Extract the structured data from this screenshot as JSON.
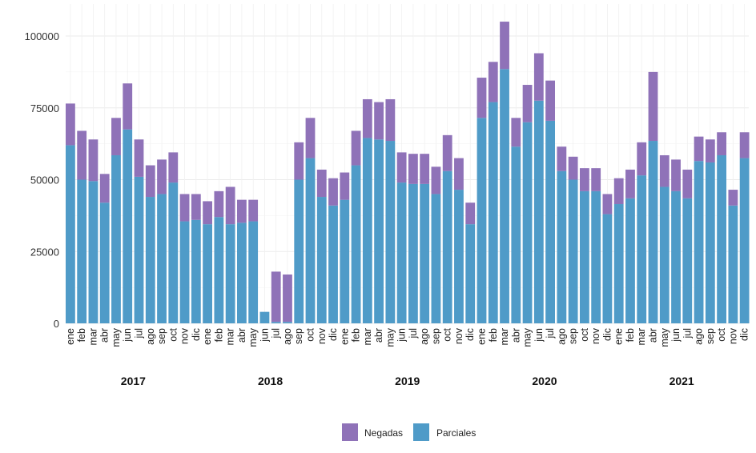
{
  "chart_data": {
    "type": "bar",
    "stacked": true,
    "title": "",
    "xlabel": "",
    "ylabel": "",
    "ylim": [
      0,
      110000
    ],
    "y_ticks": [
      0,
      25000,
      50000,
      75000,
      100000
    ],
    "grid": true,
    "legend_position": "bottom",
    "years": [
      "2017",
      "2018",
      "2019",
      "2020",
      "2021"
    ],
    "month_labels": [
      "ene",
      "feb",
      "mar",
      "abr",
      "may",
      "jun",
      "jul",
      "ago",
      "sep",
      "oct",
      "nov",
      "dic"
    ],
    "series": [
      {
        "name": "Parciales",
        "color": "#4f9bc8",
        "values": [
          [
            62000,
            50000,
            49500,
            42000,
            58500,
            67500,
            51000,
            44000,
            45000,
            49000,
            35500,
            36000
          ],
          [
            34500,
            37000,
            34500,
            35000,
            35500,
            4000,
            500,
            500,
            50000,
            57500,
            44000,
            41000
          ],
          [
            43000,
            55000,
            64500,
            64000,
            63500,
            49000,
            48500,
            48500,
            45000,
            53000,
            46500,
            34500
          ],
          [
            71500,
            77000,
            88500,
            61500,
            70000,
            77500,
            70500,
            53000,
            50000,
            46000,
            46000,
            38000
          ],
          [
            41500,
            43500,
            51500,
            63500,
            47500,
            46000,
            43500,
            56500,
            56000,
            58500,
            41000,
            57500
          ]
        ]
      },
      {
        "name": "Negadas",
        "color": "#8f72b8",
        "values": [
          [
            14500,
            17000,
            14500,
            10000,
            13000,
            16000,
            13000,
            11000,
            12000,
            10500,
            9500,
            9000
          ],
          [
            8000,
            9000,
            13000,
            8000,
            7500,
            0,
            17500,
            16500,
            13000,
            14000,
            9500,
            9500
          ],
          [
            9500,
            12000,
            13500,
            13000,
            14500,
            10500,
            10500,
            10500,
            9500,
            12500,
            11000,
            7500
          ],
          [
            14000,
            14000,
            16500,
            10000,
            13000,
            16500,
            14000,
            8500,
            8000,
            8000,
            8000,
            7000
          ],
          [
            9000,
            10000,
            11500,
            24000,
            11000,
            11000,
            10000,
            8500,
            8000,
            8000,
            5500,
            9000
          ]
        ]
      }
    ]
  }
}
